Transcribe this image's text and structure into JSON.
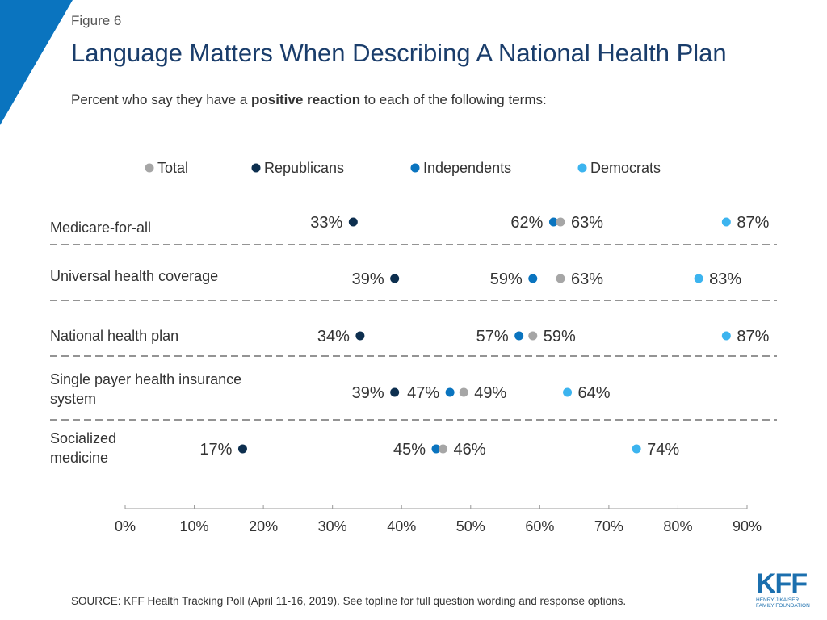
{
  "figure_label": "Figure 6",
  "title": "Language Matters When Describing A National Health Plan",
  "subtitle": {
    "pre": "Percent who say they have a ",
    "bold": "positive reaction",
    "post": " to each of the following terms:"
  },
  "source": "SOURCE: KFF Health Tracking Poll (April 11-16, 2019). See topline for full question wording and response options.",
  "logo": {
    "main": "KFF",
    "sub_line1": "HENRY J KAISER",
    "sub_line2": "FAMILY FOUNDATION"
  },
  "colors": {
    "accent": "#0a74bf",
    "title": "#1a3d6b",
    "Total": "#a6a6a6",
    "Republicans": "#0d2f4f",
    "Independents": "#0a74bf",
    "Democrats": "#3cb4ef"
  },
  "chart_data": {
    "type": "scatter",
    "title": "Language Matters When Describing A National Health Plan",
    "xlabel": "",
    "ylabel": "",
    "xlim": [
      0,
      90
    ],
    "x_ticks": [
      "0%",
      "10%",
      "20%",
      "30%",
      "40%",
      "50%",
      "60%",
      "70%",
      "80%",
      "90%"
    ],
    "x_tick_values": [
      0,
      10,
      20,
      30,
      40,
      50,
      60,
      70,
      80,
      90
    ],
    "legend_position": "top",
    "categories": [
      "Medicare-for-all",
      "Universal health coverage",
      "National health plan",
      "Single payer health insurance system",
      "Socialized medicine"
    ],
    "series": [
      {
        "name": "Total",
        "values": [
          63,
          63,
          59,
          49,
          46
        ]
      },
      {
        "name": "Republicans",
        "values": [
          33,
          39,
          34,
          39,
          17
        ]
      },
      {
        "name": "Independents",
        "values": [
          62,
          59,
          57,
          47,
          45
        ]
      },
      {
        "name": "Democrats",
        "values": [
          87,
          83,
          87,
          64,
          74
        ]
      }
    ]
  }
}
